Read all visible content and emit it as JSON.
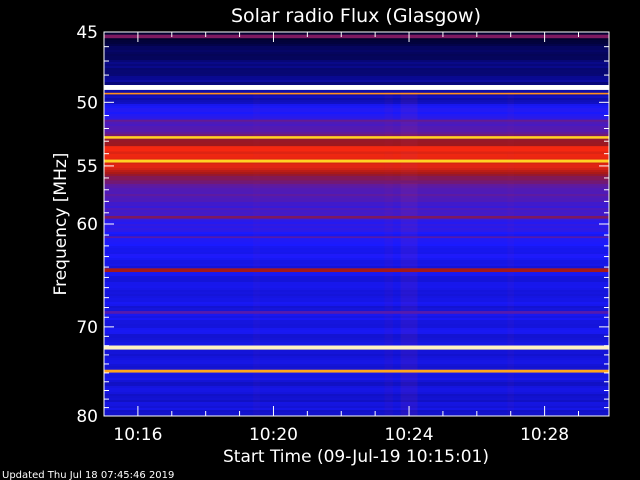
{
  "chart_data": {
    "type": "heatmap",
    "title": "Solar radio Flux (Glasgow)",
    "xlabel": "Start Time (09-Jul-19 10:15:01)",
    "ylabel": "Frequency [MHz]",
    "footer": "Updated Thu Jul 18 07:45:46 2019",
    "x_ticks": [
      "10:16",
      "10:20",
      "10:24",
      "10:28"
    ],
    "x_tick_minutes": [
      1,
      5,
      9,
      13
    ],
    "x_range_minutes": [
      0,
      14.9
    ],
    "y_ticks": [
      45,
      50,
      55,
      60,
      70,
      80
    ],
    "y_range": [
      45,
      80
    ],
    "y_scale": "log",
    "colormap": [
      "#000020",
      "#0a0a9a",
      "#1a1aff",
      "#5a1aa8",
      "#a01818",
      "#ff2a10",
      "#ffd020",
      "#ffffff"
    ],
    "background_profile": [
      [
        45.0,
        0.02
      ],
      [
        46.0,
        0.08
      ],
      [
        48.0,
        0.14
      ],
      [
        49.4,
        0.16
      ],
      [
        50.5,
        0.3
      ],
      [
        51.5,
        0.38
      ],
      [
        52.5,
        0.48
      ],
      [
        53.5,
        0.64
      ],
      [
        54.5,
        0.72
      ],
      [
        55.5,
        0.62
      ],
      [
        56.5,
        0.46
      ],
      [
        58.0,
        0.4
      ],
      [
        59.5,
        0.36
      ],
      [
        61.0,
        0.3
      ],
      [
        63.0,
        0.28
      ],
      [
        66.0,
        0.26
      ],
      [
        70.0,
        0.26
      ],
      [
        74.0,
        0.25
      ],
      [
        80.0,
        0.24
      ]
    ],
    "bands": [
      {
        "f": 45.3,
        "w": 0.12,
        "v": 0.5
      },
      {
        "f": 48.9,
        "w": 0.18,
        "v": 1.0
      },
      {
        "f": 49.35,
        "w": 0.06,
        "v": 0.8
      },
      {
        "f": 51.4,
        "w": 0.08,
        "v": 0.45
      },
      {
        "f": 52.7,
        "w": 0.1,
        "v": 0.86
      },
      {
        "f": 53.6,
        "w": 0.2,
        "v": 0.7
      },
      {
        "f": 54.6,
        "w": 0.12,
        "v": 0.86
      },
      {
        "f": 56.3,
        "w": 0.1,
        "v": 0.48
      },
      {
        "f": 59.4,
        "w": 0.12,
        "v": 0.5
      },
      {
        "f": 61.2,
        "w": 0.08,
        "v": 0.42
      },
      {
        "f": 64.3,
        "w": 0.18,
        "v": 0.58
      },
      {
        "f": 68.5,
        "w": 0.14,
        "v": 0.42
      },
      {
        "f": 72.2,
        "w": 0.22,
        "v": 0.96
      },
      {
        "f": 74.8,
        "w": 0.16,
        "v": 0.82
      }
    ]
  }
}
